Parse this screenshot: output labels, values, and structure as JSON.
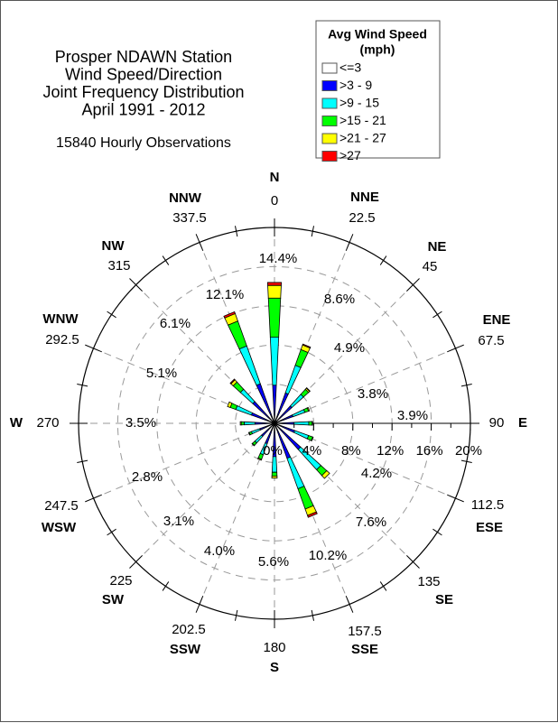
{
  "chart_data": {
    "type": "wind-rose",
    "title": [
      "Prosper NDAWN Station",
      "Wind Speed/Direction",
      "Joint Frequency Distribution",
      "April 1991 - 2012"
    ],
    "subtitle": "15840 Hourly Observations",
    "legend": {
      "title": [
        "Avg Wind Speed",
        "(mph)"
      ],
      "placement": "top-right",
      "bins": [
        {
          "label": "<=3",
          "color": "#ffffff"
        },
        {
          "label": ">3 - 9",
          "color": "#0000ff"
        },
        {
          "label": ">9 - 15",
          "color": "#00ffff"
        },
        {
          "label": ">15 - 21",
          "color": "#00ff00"
        },
        {
          "label": ">21 - 27",
          "color": "#ffff00"
        },
        {
          "label": ">27",
          "color": "#ff0000"
        }
      ]
    },
    "radial_axis": {
      "ticks": [
        "0%",
        "4%",
        "8%",
        "12%",
        "16%",
        "20%"
      ],
      "range": [
        0,
        20
      ],
      "unit": "%",
      "color": "#a020d0",
      "grid": "dashed"
    },
    "directions": [
      {
        "name": "N",
        "degrees": "0",
        "total": "14.4%",
        "values": [
          0,
          3.9,
          4.9,
          4.0,
          1.3,
          0.3
        ]
      },
      {
        "name": "NNE",
        "degrees": "22.5",
        "total": "8.6%",
        "values": [
          0,
          3.3,
          3.0,
          1.7,
          0.5,
          0.1
        ]
      },
      {
        "name": "NE",
        "degrees": "45",
        "total": "4.9%",
        "values": [
          0,
          2.4,
          1.6,
          0.7,
          0.15,
          0.05
        ]
      },
      {
        "name": "ENE",
        "degrees": "67.5",
        "total": "3.8%",
        "values": [
          0,
          2.0,
          1.3,
          0.4,
          0.1,
          0
        ]
      },
      {
        "name": "E",
        "degrees": "90",
        "total": "3.9%",
        "values": [
          0,
          2.0,
          1.5,
          0.35,
          0.05,
          0
        ]
      },
      {
        "name": "ESE",
        "degrees": "112.5",
        "total": "4.2%",
        "values": [
          0,
          2.2,
          1.5,
          0.45,
          0.05,
          0
        ]
      },
      {
        "name": "SE",
        "degrees": "135",
        "total": "7.6%",
        "values": [
          0,
          3.6,
          2.8,
          0.8,
          0.4,
          0
        ]
      },
      {
        "name": "SSE",
        "degrees": "157.5",
        "total": "10.2%",
        "values": [
          0,
          3.8,
          3.3,
          2.2,
          0.7,
          0.2
        ]
      },
      {
        "name": "S",
        "degrees": "180",
        "total": "5.6%",
        "values": [
          0,
          3.4,
          1.6,
          0.4,
          0.2,
          0
        ]
      },
      {
        "name": "SSW",
        "degrees": "202.5",
        "total": "4.0%",
        "values": [
          0,
          2.2,
          1.2,
          0.5,
          0.1,
          0
        ]
      },
      {
        "name": "SW",
        "degrees": "225",
        "total": "3.1%",
        "values": [
          0,
          1.8,
          0.9,
          0.35,
          0.05,
          0
        ]
      },
      {
        "name": "WSW",
        "degrees": "247.5",
        "total": "2.8%",
        "values": [
          0,
          1.6,
          0.9,
          0.25,
          0.05,
          0
        ]
      },
      {
        "name": "W",
        "degrees": "270",
        "total": "3.5%",
        "values": [
          0,
          2.0,
          1.1,
          0.3,
          0.1,
          0
        ]
      },
      {
        "name": "WNW",
        "degrees": "292.5",
        "total": "5.1%",
        "values": [
          0,
          2.5,
          1.7,
          0.6,
          0.3,
          0
        ]
      },
      {
        "name": "NW",
        "degrees": "315",
        "total": "6.1%",
        "values": [
          0,
          3.0,
          1.7,
          1.0,
          0.3,
          0.1
        ]
      },
      {
        "name": "NNW",
        "degrees": "337.5",
        "total": "12.1%",
        "values": [
          0,
          4.3,
          4.1,
          2.7,
          0.8,
          0.2
        ]
      }
    ]
  }
}
